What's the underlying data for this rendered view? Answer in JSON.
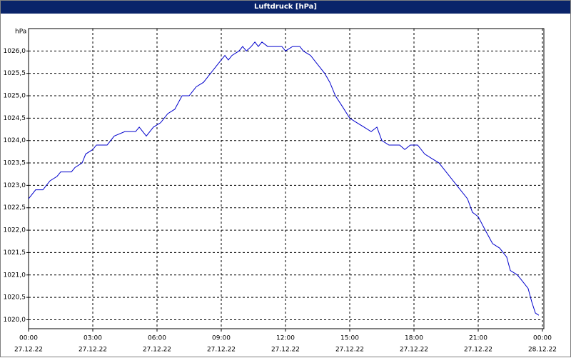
{
  "chart_data": {
    "type": "line",
    "title": "Luftdruck [hPa]",
    "y_label": "hPa",
    "x": [
      0,
      0.33,
      0.67,
      1,
      1.33,
      1.5,
      2,
      2.17,
      2.5,
      2.67,
      3,
      3.17,
      3.67,
      4,
      4.5,
      5,
      5.17,
      5.5,
      5.83,
      6.17,
      6.5,
      6.83,
      7.17,
      7.5,
      7.83,
      8.17,
      8.5,
      8.83,
      9.17,
      9.33,
      9.5,
      9.83,
      10,
      10.17,
      10.4,
      10.57,
      10.73,
      10.9,
      11.17,
      11.83,
      12,
      12.33,
      12.67,
      12.83,
      13.17,
      13.5,
      13.83,
      14.07,
      14.33,
      14.67,
      15,
      15.33,
      15.67,
      16,
      16.27,
      16.5,
      16.83,
      17.33,
      17.57,
      17.83,
      18.17,
      18.5,
      18.83,
      19.17,
      19.5,
      20,
      20.5,
      20.73,
      21,
      21.33,
      21.67,
      22,
      22.33,
      22.5,
      22.83,
      23,
      23.33,
      23.5,
      23.67,
      23.83
    ],
    "series": [
      {
        "name": "Luftdruck",
        "color": "#0000cc",
        "values": [
          1022.7,
          1022.9,
          1022.9,
          1023.1,
          1023.2,
          1023.3,
          1023.3,
          1023.4,
          1023.5,
          1023.7,
          1023.8,
          1023.9,
          1023.9,
          1024.1,
          1024.2,
          1024.2,
          1024.3,
          1024.1,
          1024.3,
          1024.4,
          1024.6,
          1024.7,
          1025.0,
          1025.0,
          1025.2,
          1025.3,
          1025.5,
          1025.7,
          1025.9,
          1025.8,
          1025.9,
          1026.0,
          1026.1,
          1026.0,
          1026.1,
          1026.2,
          1026.1,
          1026.2,
          1026.1,
          1026.1,
          1026.0,
          1026.1,
          1026.1,
          1026.0,
          1025.9,
          1025.7,
          1025.5,
          1025.3,
          1025.0,
          1024.75,
          1024.5,
          1024.4,
          1024.3,
          1024.2,
          1024.3,
          1024.0,
          1023.9,
          1023.9,
          1023.8,
          1023.9,
          1023.9,
          1023.7,
          1023.6,
          1023.5,
          1023.3,
          1023.0,
          1022.7,
          1022.4,
          1022.3,
          1022.0,
          1021.7,
          1021.6,
          1021.4,
          1021.1,
          1021.0,
          1020.9,
          1020.7,
          1020.4,
          1020.15,
          1020.1
        ]
      }
    ],
    "xlim": [
      0,
      24
    ],
    "xticks": [
      {
        "value": 0,
        "label": "00:00",
        "date": "27.12.22"
      },
      {
        "value": 3,
        "label": "03:00",
        "date": "27.12.22"
      },
      {
        "value": 6,
        "label": "06:00",
        "date": "27.12.22"
      },
      {
        "value": 9,
        "label": "09:00",
        "date": "27.12.22"
      },
      {
        "value": 12,
        "label": "12:00",
        "date": "27.12.22"
      },
      {
        "value": 15,
        "label": "15:00",
        "date": "27.12.22"
      },
      {
        "value": 18,
        "label": "18:00",
        "date": "27.12.22"
      },
      {
        "value": 21,
        "label": "21:00",
        "date": "27.12.22"
      },
      {
        "value": 24,
        "label": "00:00",
        "date": "28.12.22"
      }
    ],
    "ylim": [
      1019.8,
      1026.5
    ],
    "yticks": [
      {
        "value": 1020,
        "label": "1020,0"
      },
      {
        "value": 1020.5,
        "label": "1020,5"
      },
      {
        "value": 1021,
        "label": "1021,0"
      },
      {
        "value": 1021.5,
        "label": "1021,5"
      },
      {
        "value": 1022,
        "label": "1022,0"
      },
      {
        "value": 1022.5,
        "label": "1022,5"
      },
      {
        "value": 1023,
        "label": "1023,0"
      },
      {
        "value": 1023.5,
        "label": "1023,5"
      },
      {
        "value": 1024,
        "label": "1024,0"
      },
      {
        "value": 1024.5,
        "label": "1024,5"
      },
      {
        "value": 1025,
        "label": "1025,0"
      },
      {
        "value": 1025.5,
        "label": "1025,5"
      },
      {
        "value": 1026,
        "label": "1026,0"
      }
    ],
    "grid": true
  }
}
